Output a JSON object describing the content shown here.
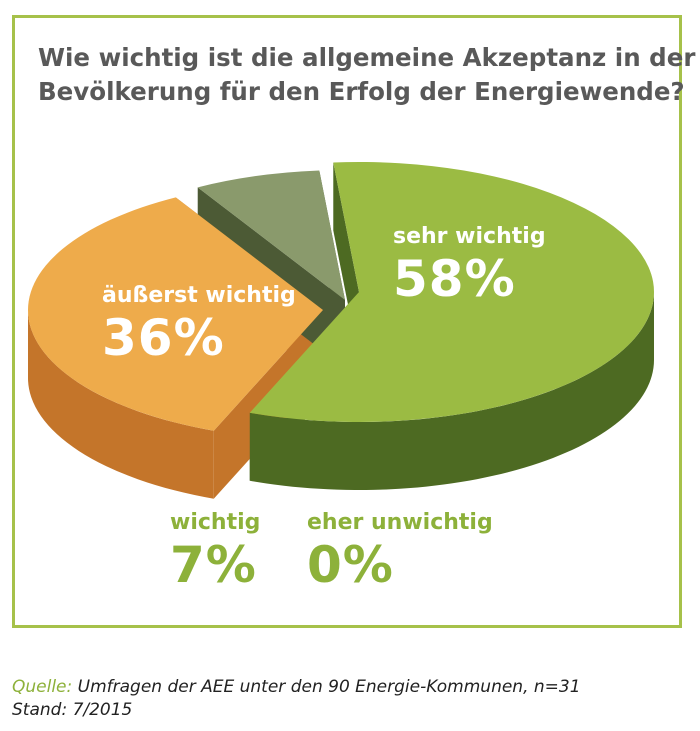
{
  "chart_data": {
    "type": "pie",
    "title_lines": [
      "Wie wichtig ist die allgemeine Akzeptanz in der",
      "Bevölkerung für den Erfolg der Energiewende?"
    ],
    "slices": [
      {
        "name": "sehr wichtig",
        "value": 58,
        "label": "58%",
        "color": "#9bbb43",
        "side_color": "#4d6a22"
      },
      {
        "name": "äußerst wichtig",
        "value": 36,
        "label": "36%",
        "color": "#eeab4b",
        "side_color": "#c4752a"
      },
      {
        "name": "wichtig",
        "value": 7,
        "label": "7%",
        "color": "#8a9a6c",
        "side_color": "#4c5a35"
      },
      {
        "name": "eher unwichtig",
        "value": 0,
        "label": "0%",
        "color": "#8db13a",
        "side_color": "#4d6a22"
      }
    ]
  },
  "footer": {
    "source_label": "Quelle:",
    "source_text": " Umfragen der AEE unter den 90 Energie-Kommunen, n=31",
    "date_text": "Stand: 7/2015"
  },
  "colors": {
    "frame": "#a6c14a",
    "title": "#595959",
    "accent_green": "#8db13a"
  }
}
